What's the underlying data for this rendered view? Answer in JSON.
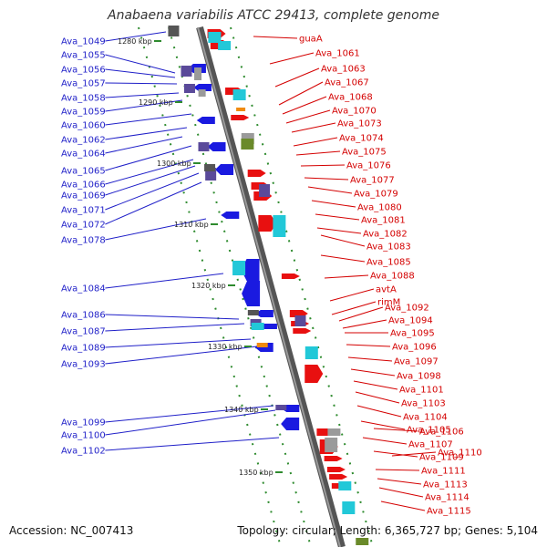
{
  "title": "Anabaena variabilis ATCC 29413, complete genome",
  "footer": {
    "accession": "Accession: NC_007413",
    "summary": "Topology: circular; Length: 6,365,727 bp; Genes: 5,104"
  },
  "colors": {
    "left_label": "#1f1fc8",
    "right_label": "#d40000"
  },
  "kbp_ticks": [
    "1280 kbp",
    "1290 kbp",
    "1300 kbp",
    "1310 kbp",
    "1320 kbp",
    "1330 kbp",
    "1340 kbp",
    "1350 kbp"
  ],
  "left_genes": [
    "Ava_1049",
    "Ava_1055",
    "Ava_1056",
    "Ava_1057",
    "Ava_1058",
    "Ava_1059",
    "Ava_1060",
    "Ava_1062",
    "Ava_1064",
    "Ava_1065",
    "Ava_1066",
    "Ava_1069",
    "Ava_1071",
    "Ava_1072",
    "Ava_1078",
    "Ava_1084",
    "Ava_1086",
    "Ava_1087",
    "Ava_1089",
    "Ava_1093",
    "Ava_1099",
    "Ava_1100",
    "Ava_1102"
  ],
  "right_genes": [
    "guaA",
    "Ava_1061",
    "Ava_1063",
    "Ava_1067",
    "Ava_1068",
    "Ava_1070",
    "Ava_1073",
    "Ava_1074",
    "Ava_1075",
    "Ava_1076",
    "Ava_1077",
    "Ava_1079",
    "Ava_1080",
    "Ava_1081",
    "Ava_1082",
    "Ava_1083",
    "Ava_1085",
    "Ava_1088",
    "avtA",
    "rimM",
    "Ava_1092",
    "Ava_1094",
    "Ava_1095",
    "Ava_1096",
    "Ava_1097",
    "Ava_1098",
    "Ava_1101",
    "Ava_1103",
    "Ava_1104",
    "Ava_1105",
    "Ava_1106",
    "Ava_1107",
    "Ava_1109",
    "Ava_1110",
    "Ava_1111",
    "Ava_1113",
    "Ava_1114",
    "Ava_1115"
  ]
}
